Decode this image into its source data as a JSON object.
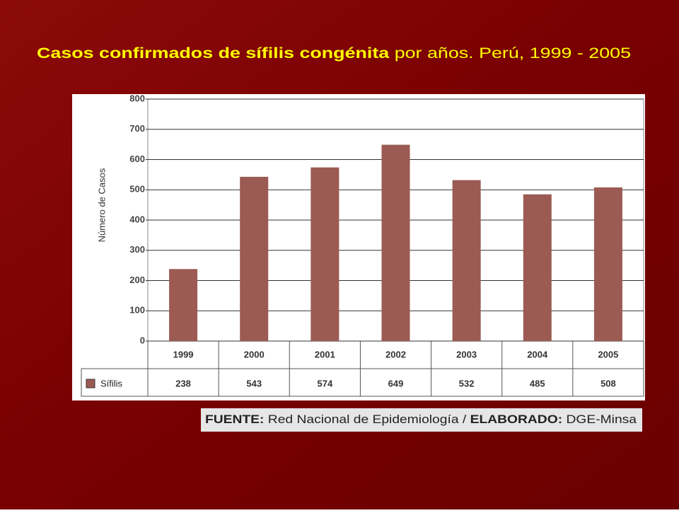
{
  "chart_data": {
    "type": "bar",
    "title": [
      "Casos confirmados de sífilis congénita",
      "por años. Perú, 1999 - 2005"
    ],
    "y_label": "Número de Casos",
    "categories": [
      "1999",
      "2000",
      "2001",
      "2002",
      "2003",
      "2004",
      "2005"
    ],
    "series": [
      {
        "name": "Sífilis",
        "color": "#9b5a52",
        "values": [
          238,
          543,
          574,
          649,
          532,
          485,
          508
        ]
      }
    ],
    "ylim": [
      0,
      800
    ],
    "yticks": [
      0,
      100,
      200,
      300,
      400,
      500,
      600,
      700,
      800
    ],
    "grid": true,
    "source": [
      "FUENTE:",
      "Red Nacional de Epidemiología /",
      "ELABORADO:",
      "DGE-Minsa"
    ]
  }
}
